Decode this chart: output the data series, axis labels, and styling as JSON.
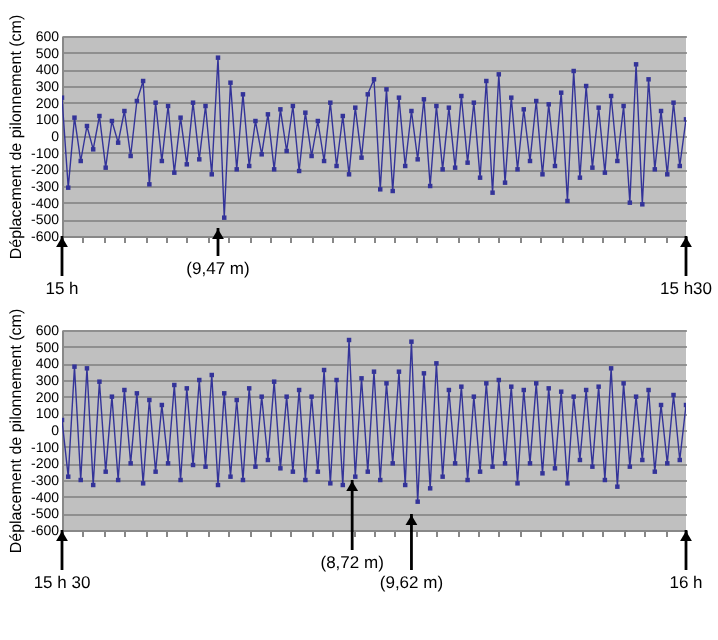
{
  "chart_data": [
    {
      "type": "line",
      "ylabel": "Déplacement de pilonnement (cm)",
      "color": "#333399",
      "marker": "square",
      "line_style": "solid",
      "grid": "y",
      "tick_labels": "y",
      "ylim": [
        -600,
        600
      ],
      "yticks": [
        -600,
        -500,
        -400,
        -300,
        -200,
        -100,
        0,
        100,
        200,
        300,
        400,
        500,
        600
      ],
      "categories": [
        null,
        null,
        null,
        null,
        null,
        null,
        null,
        null,
        null,
        null,
        null,
        null,
        null,
        null,
        null,
        null,
        null,
        null,
        null,
        null,
        null,
        null,
        null,
        null,
        null,
        null,
        null,
        null,
        null,
        null,
        null,
        null,
        null,
        null,
        null,
        null,
        null,
        null,
        null,
        null,
        null,
        null,
        null,
        null,
        null,
        null,
        null,
        null,
        null,
        null,
        null,
        null,
        null,
        null,
        null,
        null,
        null,
        null,
        null,
        null,
        null,
        null,
        null,
        null,
        null,
        null,
        null,
        null,
        null,
        null,
        null,
        null,
        null,
        null,
        null,
        null,
        null,
        null,
        null,
        null,
        null,
        null,
        null,
        null,
        null,
        null,
        null,
        null,
        null,
        null,
        null,
        null,
        null,
        null,
        null,
        null,
        null,
        null,
        null,
        null,
        null
      ],
      "values": [
        230,
        -310,
        110,
        -150,
        60,
        -80,
        120,
        -190,
        90,
        -40,
        150,
        -120,
        210,
        330,
        -290,
        200,
        -150,
        180,
        -220,
        110,
        -170,
        200,
        -140,
        180,
        -230,
        470,
        -490,
        320,
        -200,
        250,
        -180,
        90,
        -110,
        130,
        -200,
        160,
        -90,
        180,
        -210,
        140,
        -120,
        90,
        -150,
        200,
        -180,
        120,
        -230,
        170,
        -130,
        250,
        340,
        -320,
        280,
        -330,
        230,
        -180,
        150,
        -140,
        220,
        -300,
        180,
        -200,
        170,
        -190,
        240,
        -160,
        200,
        -250,
        330,
        -340,
        370,
        -280,
        230,
        -200,
        160,
        -150,
        210,
        -230,
        190,
        -180,
        260,
        -390,
        390,
        -250,
        300,
        -190,
        170,
        -220,
        240,
        -150,
        180,
        -400,
        430,
        -410,
        340,
        -200,
        150,
        -230,
        200,
        -180,
        100
      ],
      "annotations": [
        "15 h",
        "(9,47 m)",
        "15 h30"
      ]
    },
    {
      "type": "line",
      "ylabel": "Déplacement de pilonnement (cm)",
      "color": "#333399",
      "marker": "square",
      "line_style": "solid",
      "grid": "y",
      "tick_labels": "y",
      "ylim": [
        -600,
        600
      ],
      "yticks": [
        -600,
        -500,
        -400,
        -300,
        -200,
        -100,
        0,
        100,
        200,
        300,
        400,
        500,
        600
      ],
      "categories": [
        null,
        null,
        null,
        null,
        null,
        null,
        null,
        null,
        null,
        null,
        null,
        null,
        null,
        null,
        null,
        null,
        null,
        null,
        null,
        null,
        null,
        null,
        null,
        null,
        null,
        null,
        null,
        null,
        null,
        null,
        null,
        null,
        null,
        null,
        null,
        null,
        null,
        null,
        null,
        null,
        null,
        null,
        null,
        null,
        null,
        null,
        null,
        null,
        null,
        null,
        null,
        null,
        null,
        null,
        null,
        null,
        null,
        null,
        null,
        null,
        null,
        null,
        null,
        null,
        null,
        null,
        null,
        null,
        null,
        null,
        null,
        null,
        null,
        null,
        null,
        null,
        null,
        null,
        null,
        null,
        null,
        null,
        null,
        null,
        null,
        null,
        null,
        null,
        null,
        null,
        null,
        null,
        null,
        null,
        null,
        null,
        null,
        null,
        null,
        null,
        null
      ],
      "values": [
        60,
        -280,
        380,
        -300,
        370,
        -330,
        290,
        -250,
        200,
        -300,
        240,
        -200,
        220,
        -320,
        180,
        -250,
        150,
        -200,
        270,
        -300,
        250,
        -210,
        300,
        -220,
        330,
        -330,
        220,
        -280,
        180,
        -300,
        250,
        -220,
        200,
        -180,
        290,
        -230,
        200,
        -250,
        240,
        -300,
        200,
        -250,
        360,
        -320,
        300,
        -330,
        540,
        -280,
        310,
        -250,
        350,
        -300,
        280,
        -200,
        350,
        -330,
        530,
        -430,
        340,
        -350,
        400,
        -280,
        240,
        -200,
        260,
        -300,
        200,
        -250,
        280,
        -220,
        300,
        -200,
        260,
        -320,
        240,
        -200,
        280,
        -260,
        250,
        -230,
        230,
        -320,
        200,
        -180,
        240,
        -220,
        260,
        -300,
        370,
        -340,
        280,
        -220,
        200,
        -180,
        240,
        -250,
        150,
        -200,
        210,
        -180,
        150
      ],
      "annotations": [
        "15 h 30",
        "(8,72 m)",
        "(9,62 m)",
        "16 h"
      ]
    }
  ]
}
